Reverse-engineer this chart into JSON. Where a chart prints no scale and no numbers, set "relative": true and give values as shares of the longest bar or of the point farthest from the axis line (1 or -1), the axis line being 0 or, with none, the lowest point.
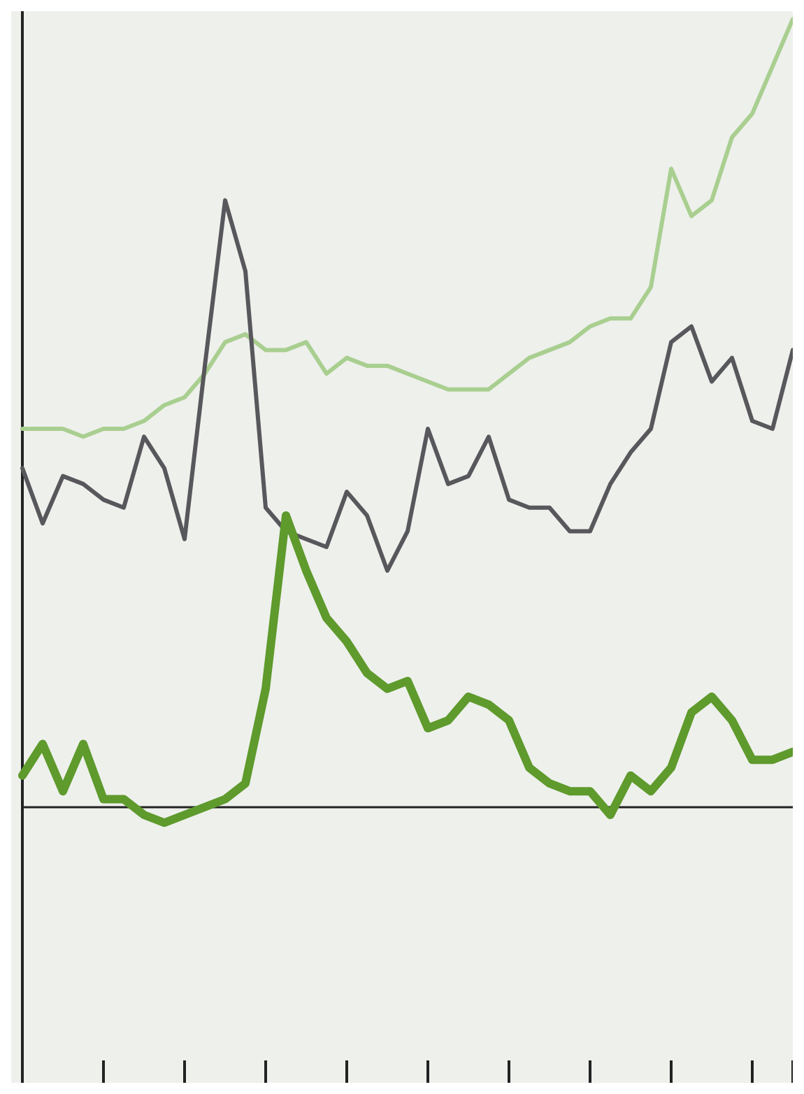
{
  "chart_data": {
    "type": "line",
    "relative": true,
    "categories": [
      null,
      null,
      null,
      null,
      null,
      null,
      null,
      null,
      null,
      null,
      null,
      null,
      null,
      null,
      null,
      null,
      null,
      null,
      null,
      null,
      null,
      null,
      null,
      null,
      null,
      null,
      null,
      null,
      null,
      null,
      null,
      null,
      null,
      null,
      null,
      null,
      null,
      null,
      null
    ],
    "marker": "none",
    "grid": false,
    "tick_labels": false,
    "series": [
      {
        "color": "#a9cf90",
        "values": [
          0.48,
          0.48,
          0.48,
          0.47,
          0.48,
          0.48,
          0.49,
          0.51,
          0.52,
          0.55,
          0.59,
          0.6,
          0.58,
          0.58,
          0.59,
          0.55,
          0.57,
          0.56,
          0.56,
          0.55,
          0.54,
          0.53,
          0.53,
          0.53,
          0.55,
          0.57,
          0.58,
          0.59,
          0.61,
          0.62,
          0.62,
          0.66,
          0.81,
          0.75,
          0.77,
          0.85,
          0.88,
          0.94,
          1
        ]
      },
      {
        "color": "#58575c",
        "values": [
          0.43,
          0.36,
          0.42,
          0.41,
          0.39,
          0.38,
          0.47,
          0.43,
          0.34,
          0.56,
          0.77,
          0.68,
          0.38,
          0.35,
          0.34,
          0.33,
          0.4,
          0.37,
          0.3,
          0.35,
          0.48,
          0.41,
          0.42,
          0.47,
          0.39,
          0.38,
          0.38,
          0.35,
          0.35,
          0.41,
          0.45,
          0.48,
          0.59,
          0.61,
          0.54,
          0.57,
          0.49,
          0.48,
          0.58
        ]
      },
      {
        "color": "#5e9a2c",
        "values": [
          0.04,
          0.08,
          0.02,
          0.08,
          0.01,
          0.01,
          -0.01,
          -0.02,
          -0.01,
          0,
          0.01,
          0.03,
          0.15,
          0.37,
          0.3,
          0.24,
          0.21,
          0.17,
          0.15,
          0.16,
          0.1,
          0.11,
          0.14,
          0.13,
          0.11,
          0.05,
          0.03,
          0.02,
          0.02,
          -0.01,
          0.04,
          0.02,
          0.05,
          0.12,
          0.14,
          0.11,
          0.06,
          0.06,
          0.07
        ]
      }
    ]
  }
}
